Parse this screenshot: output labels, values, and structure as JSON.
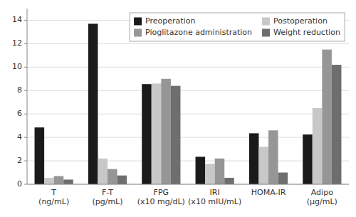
{
  "chart_data": {
    "type": "bar",
    "categories": [
      "T\n(ng/mL)",
      "F-T\n(pg/mL)",
      "FPG\n(x10 mg/dL)",
      "IRI\n(x10 mIU/mL)",
      "HOMA-IR",
      "Adipo\n(μg/mL)"
    ],
    "series": [
      {
        "name": "Preoperation",
        "color": "#1a1a1a",
        "values": [
          4.85,
          13.7,
          8.55,
          2.35,
          4.35,
          4.25
        ]
      },
      {
        "name": "Postoperation",
        "color": "#c8c8c8",
        "values": [
          0.55,
          2.2,
          8.6,
          1.75,
          3.2,
          6.5
        ]
      },
      {
        "name": "Pioglitazone administration",
        "color": "#969696",
        "values": [
          0.7,
          1.3,
          9.0,
          2.2,
          4.6,
          11.5
        ]
      },
      {
        "name": "Weight reduction",
        "color": "#6e6e6e",
        "values": [
          0.4,
          0.75,
          8.4,
          0.55,
          1.0,
          10.2
        ]
      }
    ],
    "ylim": [
      0,
      15
    ],
    "yticks": [
      0,
      2,
      4,
      6,
      8,
      10,
      12,
      14
    ],
    "grid": true,
    "legend": "upper right"
  }
}
